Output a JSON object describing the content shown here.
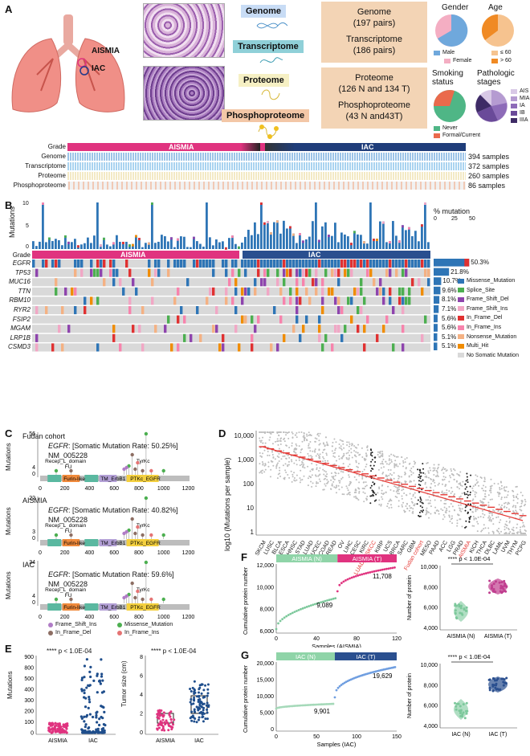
{
  "panelA": {
    "letter": "A",
    "organ_labels": {
      "aismia": "AISMIA",
      "iac": "IAC"
    },
    "omics": [
      "Genome",
      "Transcriptome",
      "Proteome",
      "Phosphoproteome"
    ],
    "box1": {
      "line1": "Genome",
      "line2": "(197 pairs)",
      "line3": "Transcriptome",
      "line4": "(186 pairs)"
    },
    "box2": {
      "line1": "Proteome",
      "line2": "(126 N and 134 T)",
      "line3": "Phosphoproteome",
      "line4": "(43 N and43T)"
    },
    "pies": {
      "gender": {
        "title": "Gender",
        "legend": [
          "Male",
          "Female"
        ],
        "colors": [
          "#6fa8dc",
          "#f4aec3"
        ]
      },
      "age": {
        "title": "Age",
        "legend": [
          "≤ 60",
          "> 60"
        ],
        "colors": [
          "#f6c38f",
          "#f08a24"
        ]
      },
      "smoking": {
        "title": "Smoking status",
        "legend": [
          "Never",
          "Formal/Current"
        ],
        "colors": [
          "#4fb686",
          "#ea6a4c"
        ]
      },
      "stage": {
        "title": "Pathologic stages",
        "legend": [
          "AIS",
          "MIA",
          "IA",
          "IB",
          "IIIA"
        ],
        "colors": [
          "#d8c8e6",
          "#b59bd1",
          "#8d6bb8",
          "#6a4a99",
          "#3e2b66"
        ]
      }
    },
    "grade_label": "Grade",
    "grade_groups": [
      "AISMIA",
      "IAC"
    ],
    "rows": [
      {
        "name": "Genome",
        "count": "394 samples"
      },
      {
        "name": "Transcriptome",
        "count": "372 samples"
      },
      {
        "name": "Proteome",
        "count": "260 samples"
      },
      {
        "name": "Phosphoproteome",
        "count": "86 samples"
      }
    ]
  },
  "panelB": {
    "letter": "B",
    "y_label": "Mutations",
    "y_ticks": [
      "10",
      "5",
      "0"
    ],
    "grade_label": "Grade",
    "groups": [
      "AISMIA",
      "IAC"
    ],
    "pct_header": "% mutation",
    "pct_ticks": [
      "0",
      "25",
      "50"
    ],
    "genes": [
      {
        "name": "EGFR",
        "pct": "50.3%"
      },
      {
        "name": "TP53",
        "pct": "21.8%"
      },
      {
        "name": "MUC16",
        "pct": "10.7%"
      },
      {
        "name": "TTN",
        "pct": "9.6%"
      },
      {
        "name": "RBM10",
        "pct": "8.1%"
      },
      {
        "name": "RYR2",
        "pct": "7.1%"
      },
      {
        "name": "FSIP2",
        "pct": "5.6%"
      },
      {
        "name": "MGAM",
        "pct": "5.6%"
      },
      {
        "name": "LRP1B",
        "pct": "5.1%"
      },
      {
        "name": "CSMD3",
        "pct": "5.1%"
      }
    ],
    "legend": [
      {
        "label": "Missense_Mutation",
        "color": "#2e75b6"
      },
      {
        "label": "Splice_Site",
        "color": "#4caf50"
      },
      {
        "label": "Frame_Shift_Del",
        "color": "#8e44ad"
      },
      {
        "label": "Frame_Shift_Ins",
        "color": "#f1a7c5"
      },
      {
        "label": "In_Frame_Del",
        "color": "#e03131"
      },
      {
        "label": "In_Frame_Ins",
        "color": "#f783ac"
      },
      {
        "label": "Nonsense_Mutation",
        "color": "#f4b183"
      },
      {
        "label": "Multi_Hit",
        "color": "#f08c00"
      },
      {
        "label": "No Somatic Mutation",
        "color": "#d9d9d9"
      }
    ]
  },
  "panelC": {
    "letter": "C",
    "y_label": "Mutations",
    "x_ticks": [
      "0",
      "200",
      "400",
      "600",
      "800",
      "1000",
      "1200"
    ],
    "domains": [
      "Recep_L_domain",
      "FU",
      "Furin-like",
      "TM_ErbB1",
      "PTKc_EGFR",
      "TyrKc"
    ],
    "plots": [
      {
        "cohort": "Fudan cohort",
        "gene": "EGFR",
        "rate_text": ": [Somatic Mutation Rate: 50.25%]",
        "accession": "NM_005228",
        "ymax": "56",
        "ymid": "4"
      },
      {
        "cohort": "AISMIA",
        "gene": "EGFR",
        "rate_text": ": [Somatic Mutation Rate: 40.82%]",
        "accession": "NM_005228",
        "ymax": "22",
        "ymid": "3"
      },
      {
        "cohort": "IAC",
        "gene": "EGFR",
        "rate_text": ": [Somatic Mutation Rate: 59.6%]",
        "accession": "NM_005228",
        "ymax": "34",
        "ymid": "4"
      }
    ],
    "legend": [
      {
        "label": "Frame_Shift_Ins",
        "color": "#b07cc6"
      },
      {
        "label": "Missense_Mutation",
        "color": "#4caf50"
      },
      {
        "label": "In_Frame_Del",
        "color": "#8d6e63"
      },
      {
        "label": "In_Frame_Ins",
        "color": "#e57373"
      }
    ]
  },
  "panelD": {
    "letter": "D",
    "y_label": "log10 (Mutations per sample)",
    "y_ticks": [
      "10,000",
      "1,000",
      "100",
      "10",
      "1"
    ],
    "cancers": [
      "SKCM",
      "LUSC",
      "BLCA",
      "ESCA",
      "HNSC",
      "STAD",
      "LUAD",
      "UCEC",
      "COAD",
      "READ",
      "OV",
      "LIHC",
      "CESC",
      "KIRC",
      "LUAD_MSKCC",
      "KIRP",
      "UCS",
      "BRCA",
      "SARC",
      "GBM",
      "Fudan cohort",
      "MESO",
      "PAAD",
      "ACC",
      "LGG",
      "PRAD",
      "AISMIA",
      "KICH",
      "THCA",
      "DLBC",
      "LAML",
      "UVM",
      "THYM",
      "PCPG"
    ],
    "highlight": [
      "LUAD_MSKCC",
      "IAC",
      "Fudan cohort",
      "AISMIA"
    ]
  },
  "panelE": {
    "letter": "E",
    "left": {
      "stat": "**** p < 1.0E-04",
      "y_label": "Mutations",
      "y_ticks": [
        "900",
        "800",
        "500",
        "400",
        "300",
        "200",
        "100",
        "0"
      ],
      "groups": [
        "AISMIA",
        "IAC"
      ]
    },
    "right": {
      "stat": "**** p < 1.0E-04",
      "y_label": "Tumor size (cm)",
      "y_ticks": [
        "8",
        "6",
        "4",
        "2",
        "0"
      ],
      "groups": [
        "AISMIA",
        "IAC"
      ]
    }
  },
  "panelF": {
    "letter": "F",
    "curve": {
      "header_left": "AISMIA (N)",
      "header_right": "AISMIA (T)",
      "y_label": "Cumulative protein number",
      "x_label": "Samples (AISMIA)",
      "y_ticks": [
        "12,000",
        "10,000",
        "8,000",
        "6,000"
      ],
      "x_ticks": [
        "0",
        "40",
        "80",
        "120"
      ],
      "annot1": "9,089",
      "annot2": "11,708"
    },
    "box": {
      "stat": "**** p < 1.0E-04",
      "y_label": "Number of protein",
      "y_ticks": [
        "10,000",
        "8,000",
        "6,000",
        "4,000"
      ],
      "groups": [
        "AISMIA (N)",
        "AISMIA (T)"
      ]
    }
  },
  "panelG": {
    "letter": "G",
    "curve": {
      "header_left": "IAC (N)",
      "header_right": "IAC (T)",
      "y_label": "Cumulative protein number",
      "x_label": "Samples (IAC)",
      "y_ticks": [
        "20,000",
        "15,000",
        "10,000",
        "5,000",
        "0"
      ],
      "x_ticks": [
        "0",
        "50",
        "100",
        "150"
      ],
      "annot1": "9,901",
      "annot2": "19,629"
    },
    "box": {
      "stat": "**** p < 1.0E-04",
      "y_label": "Number of protein",
      "y_ticks": [
        "10,000",
        "8,000",
        "6,000",
        "4,000"
      ],
      "groups": [
        "IAC (N)",
        "IAC (T)"
      ]
    }
  }
}
